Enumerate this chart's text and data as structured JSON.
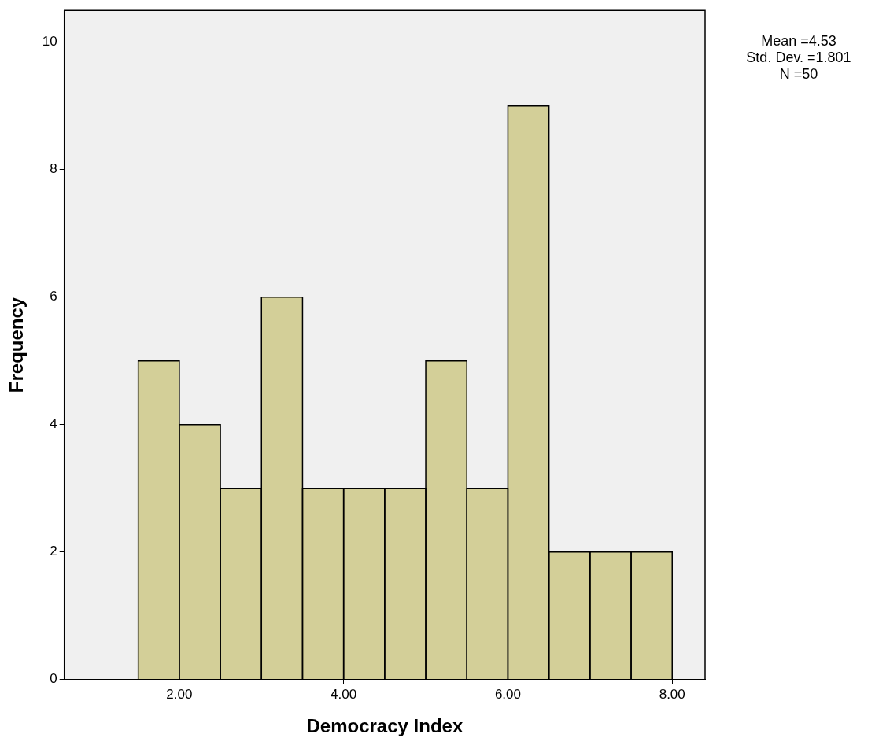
{
  "chart_data": {
    "type": "histogram",
    "xlabel": "Democracy Index",
    "ylabel": "Frequency",
    "bins": [
      1.5,
      2,
      2.5,
      3,
      3.5,
      4,
      4.5,
      5,
      5.5,
      6,
      6.5,
      7,
      7.5,
      8
    ],
    "values": [
      5,
      4,
      3,
      6,
      3,
      3,
      3,
      5,
      3,
      9,
      2,
      2,
      2
    ],
    "color": "#d3cf98",
    "xlim": [
      0.6,
      8.4
    ],
    "xticks": [
      {
        "value": 2,
        "label": "2.00"
      },
      {
        "value": 4,
        "label": "4.00"
      },
      {
        "value": 6,
        "label": "6.00"
      },
      {
        "value": 8,
        "label": "8.00"
      }
    ],
    "ylim": [
      0,
      10.5
    ],
    "yticks": [
      0,
      2,
      4,
      6,
      8,
      10
    ],
    "grid": false,
    "legend": false,
    "annotations": [
      "Mean =4.53",
      "Std. Dev. =1.801",
      "N =50"
    ]
  }
}
